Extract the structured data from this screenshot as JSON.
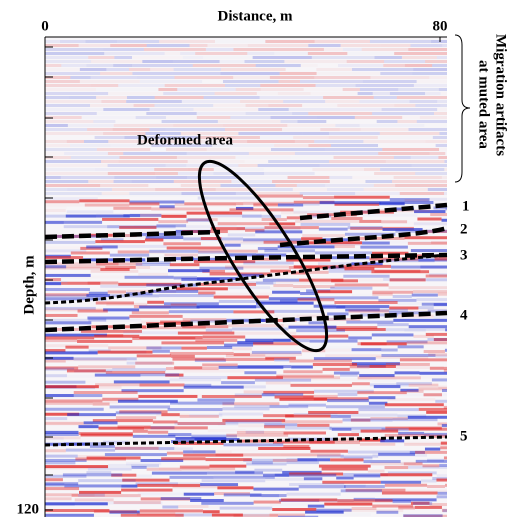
{
  "chart_data": {
    "type": "image",
    "xlabel": "Distance, m",
    "ylabel": "Depth, m",
    "xlim": [
      0,
      80
    ],
    "ylim": [
      0,
      120
    ],
    "xticks": [
      0,
      80
    ],
    "yticks": [
      120
    ],
    "annotations": {
      "deformed": "Deformed area",
      "artifacts": [
        "Migration artifacts",
        "at muted area"
      ],
      "horizons": [
        "1",
        "2",
        "3",
        "4",
        "5"
      ]
    }
  }
}
